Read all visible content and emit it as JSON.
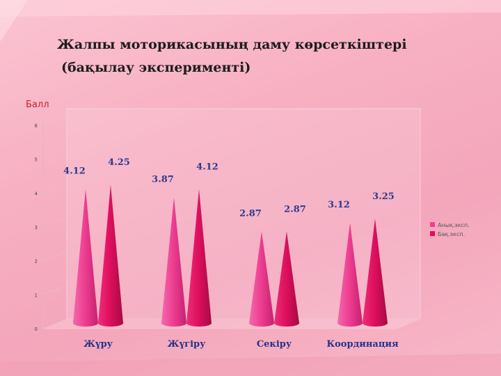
{
  "title": {
    "line1": "Жалпы моторикасының даму көрсеткіштері",
    "line2": "(бақылау эксперименті)"
  },
  "chart_data": {
    "type": "bar",
    "categories": [
      "Жүру",
      "Жүгіру",
      "Секіру",
      "Координация"
    ],
    "series": [
      {
        "name": "Анық.эксп.",
        "values": [
          4.12,
          3.87,
          2.87,
          3.12
        ],
        "color": "#ee3f93"
      },
      {
        "name": "Бақ.эксп.",
        "values": [
          4.25,
          4.12,
          2.87,
          3.25
        ],
        "color": "#e0105e"
      }
    ],
    "data_labels": [
      [
        "4.12",
        "3.87",
        "2.87",
        "3.12"
      ],
      [
        "4.25",
        "4.12",
        "2.87",
        "3.25"
      ]
    ],
    "ylabel": "Балл",
    "ylim": [
      0,
      6
    ],
    "yticks": [
      0,
      1,
      2,
      3,
      4,
      5,
      6
    ],
    "grid": false,
    "legend": "right",
    "shape": "cone"
  }
}
